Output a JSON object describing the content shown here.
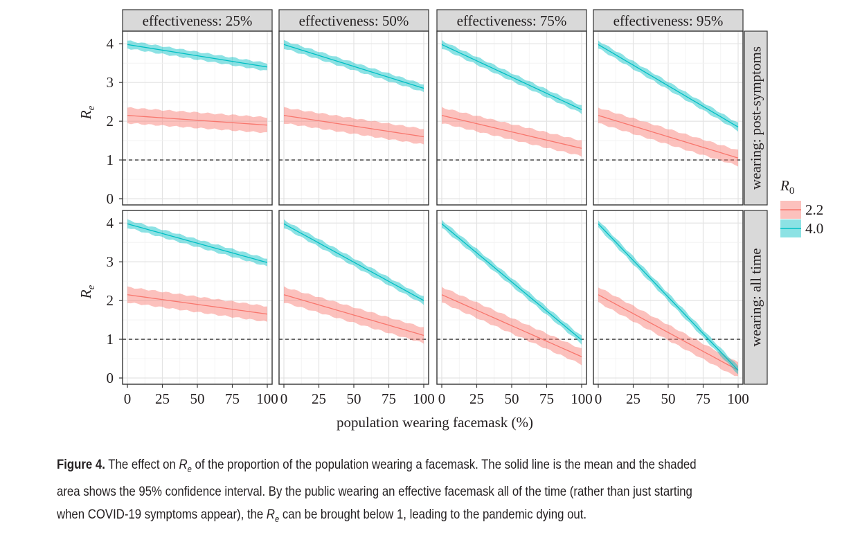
{
  "chart_data": {
    "type": "line",
    "facet_columns": [
      "effectiveness: 25%",
      "effectiveness: 50%",
      "effectiveness: 75%",
      "effectiveness: 95%"
    ],
    "facet_rows": [
      "wearing: post-symptoms",
      "wearing: all time"
    ],
    "xlabel": "population wearing facemask (%)",
    "ylabel": "R",
    "ylabel_sub": "e",
    "xlim": [
      0,
      100
    ],
    "ylim": [
      0,
      4.2
    ],
    "x_ticks": [
      0,
      25,
      50,
      75,
      100
    ],
    "y_ticks": [
      0,
      1,
      2,
      3,
      4
    ],
    "reference_line": 1,
    "grid": true,
    "legend": {
      "title": "R",
      "title_sub": "0",
      "placement": "right",
      "entries": [
        {
          "label": "2.2",
          "color": "#f8766d"
        },
        {
          "label": "4.0",
          "color": "#00bfc4"
        }
      ]
    },
    "panels": [
      {
        "row": 0,
        "col": 0,
        "series": [
          {
            "name": "2.2",
            "x": [
              0,
              100
            ],
            "mean": [
              2.15,
              1.9
            ],
            "ci_halfwidth": 0.2
          },
          {
            "name": "4.0",
            "x": [
              0,
              100
            ],
            "mean": [
              3.98,
              3.4
            ],
            "ci_halfwidth": 0.1
          }
        ]
      },
      {
        "row": 0,
        "col": 1,
        "series": [
          {
            "name": "2.2",
            "x": [
              0,
              100
            ],
            "mean": [
              2.15,
              1.6
            ],
            "ci_halfwidth": 0.2
          },
          {
            "name": "4.0",
            "x": [
              0,
              100
            ],
            "mean": [
              3.98,
              2.85
            ],
            "ci_halfwidth": 0.1
          }
        ]
      },
      {
        "row": 0,
        "col": 2,
        "series": [
          {
            "name": "2.2",
            "x": [
              0,
              100
            ],
            "mean": [
              2.15,
              1.3
            ],
            "ci_halfwidth": 0.2
          },
          {
            "name": "4.0",
            "x": [
              0,
              100
            ],
            "mean": [
              3.98,
              2.3
            ],
            "ci_halfwidth": 0.1
          }
        ]
      },
      {
        "row": 0,
        "col": 3,
        "series": [
          {
            "name": "2.2",
            "x": [
              0,
              100
            ],
            "mean": [
              2.15,
              1.05
            ],
            "ci_halfwidth": 0.2
          },
          {
            "name": "4.0",
            "x": [
              0,
              100
            ],
            "mean": [
              3.98,
              1.85
            ],
            "ci_halfwidth": 0.1
          }
        ]
      },
      {
        "row": 1,
        "col": 0,
        "series": [
          {
            "name": "2.2",
            "x": [
              0,
              100
            ],
            "mean": [
              2.15,
              1.65
            ],
            "ci_halfwidth": 0.2
          },
          {
            "name": "4.0",
            "x": [
              0,
              100
            ],
            "mean": [
              3.98,
              2.98
            ],
            "ci_halfwidth": 0.1
          }
        ]
      },
      {
        "row": 1,
        "col": 1,
        "series": [
          {
            "name": "2.2",
            "x": [
              0,
              100
            ],
            "mean": [
              2.15,
              1.1
            ],
            "ci_halfwidth": 0.2
          },
          {
            "name": "4.0",
            "x": [
              0,
              100
            ],
            "mean": [
              3.98,
              2.0
            ],
            "ci_halfwidth": 0.1
          }
        ]
      },
      {
        "row": 1,
        "col": 2,
        "series": [
          {
            "name": "2.2",
            "x": [
              0,
              100
            ],
            "mean": [
              2.15,
              0.55
            ],
            "ci_halfwidth": 0.2
          },
          {
            "name": "4.0",
            "x": [
              0,
              100
            ],
            "mean": [
              3.98,
              0.98
            ],
            "ci_halfwidth": 0.1
          }
        ]
      },
      {
        "row": 1,
        "col": 3,
        "series": [
          {
            "name": "2.2",
            "x": [
              0,
              100
            ],
            "mean": [
              2.15,
              0.2
            ],
            "ci_halfwidth": 0.2
          },
          {
            "name": "4.0",
            "x": [
              0,
              100
            ],
            "mean": [
              3.98,
              0.2
            ],
            "ci_halfwidth": 0.1
          }
        ]
      }
    ]
  },
  "caption": {
    "label": "Figure 4.",
    "line1_a": " The effect on ",
    "re_main": "R",
    "re_sub": "e",
    "line1_b": " of the proportion of the population wearing a facemask. The solid line is the mean and the shaded",
    "line2": "area shows the 95% confidence interval. By the public wearing an effective facemask all of the time (rather than just starting",
    "line3_a": "when COVID-19 symptoms appear), the ",
    "line3_b": " can be brought below 1, leading to the pandemic dying out."
  }
}
